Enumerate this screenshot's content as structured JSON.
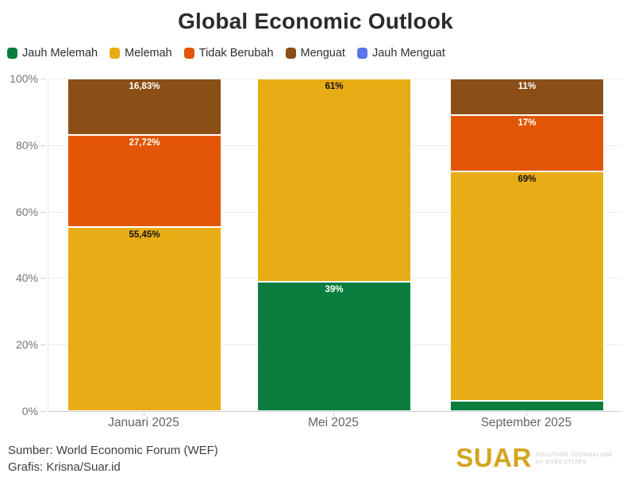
{
  "title": "Global Economic Outlook",
  "colors": {
    "jauh_melemah": "#0a7d3f",
    "melemah": "#e8ac15",
    "tidak_berubah": "#e25605",
    "menguat": "#8a4e16",
    "jauh_menguat": "#5b74e8",
    "background": "#ffffff",
    "gridline": "#ebebeb",
    "axis_text": "#757575"
  },
  "legend": {
    "items": [
      {
        "label": "Jauh Melemah",
        "color": "#0a7d3f"
      },
      {
        "label": "Melemah",
        "color": "#e8ac15"
      },
      {
        "label": "Tidak Berubah",
        "color": "#e25605"
      },
      {
        "label": "Menguat",
        "color": "#8a4e16"
      },
      {
        "label": "Jauh Menguat",
        "color": "#5b74e8"
      }
    ]
  },
  "chart_data": {
    "type": "bar",
    "subtype": "stacked-percentage",
    "title": "Global Economic Outlook",
    "categories": [
      "Januari 2025",
      "Mei 2025",
      "September 2025"
    ],
    "series": [
      {
        "name": "Jauh Melemah",
        "color": "#0a7d3f",
        "label_color": "#ffffff",
        "values": [
          0,
          39,
          3
        ],
        "labels": [
          "",
          "39%",
          ""
        ]
      },
      {
        "name": "Melemah",
        "color": "#e8ac15",
        "label_color": "#111111",
        "values": [
          55.45,
          61,
          69
        ],
        "labels": [
          "55,45%",
          "61%",
          "69%"
        ]
      },
      {
        "name": "Tidak Berubah",
        "color": "#e25605",
        "label_color": "#ffffff",
        "values": [
          27.72,
          0,
          17
        ],
        "labels": [
          "27,72%",
          "",
          "17%"
        ]
      },
      {
        "name": "Menguat",
        "color": "#8a4e16",
        "label_color": "#ffffff",
        "values": [
          16.83,
          0,
          11
        ],
        "labels": [
          "16,83%",
          "",
          "11%"
        ]
      },
      {
        "name": "Jauh Menguat",
        "color": "#5b74e8",
        "label_color": "#ffffff",
        "values": [
          0,
          0,
          0
        ],
        "labels": [
          "",
          "",
          ""
        ]
      }
    ],
    "y_ticks": [
      "0%",
      "20%",
      "40%",
      "60%",
      "80%",
      "100%"
    ],
    "ylim": [
      0,
      100
    ],
    "grid": true,
    "legend_position": "top-left"
  },
  "footer": {
    "source": "Sumber: World Economic Forum (WEF)",
    "credit": "Grafis: Krisna/Suar.id"
  },
  "logo": {
    "wordmark": "SUAR",
    "tagline_line1": "SOLUTION JOURNALISM",
    "tagline_line2_prefix": "for",
    "tagline_line2_rest": " EXECUTIVES",
    "color": "#d5a41f"
  }
}
